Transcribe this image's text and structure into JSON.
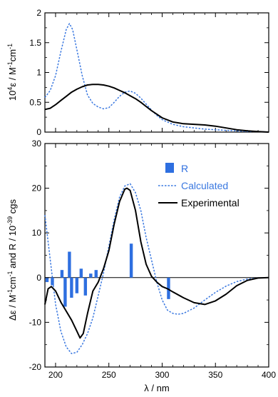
{
  "chart_data": [
    {
      "type": "line",
      "xlim": [
        190,
        400
      ],
      "ylim": [
        0,
        2
      ],
      "xticks": [
        200,
        250,
        300,
        350,
        400
      ],
      "yticks": [
        "0",
        "0.5",
        "1",
        "1.5",
        "2"
      ],
      "ylabel_pre": "10",
      "ylabel_sup": "4",
      "ylabel_main": "ε / M",
      "ylabel_sup2": "-1",
      "ylabel_mid": "cm",
      "ylabel_sup3": "-1",
      "grid": false,
      "series": [
        {
          "name": "Calculated",
          "color": "#3a78e0",
          "dash": true,
          "x": [
            190,
            195,
            200,
            205,
            210,
            213,
            216,
            220,
            225,
            230,
            235,
            240,
            245,
            250,
            255,
            260,
            265,
            270,
            275,
            280,
            285,
            290,
            295,
            300,
            310,
            320,
            330,
            340,
            350,
            360,
            370,
            380,
            390,
            400
          ],
          "y": [
            0.58,
            0.7,
            0.95,
            1.35,
            1.72,
            1.82,
            1.72,
            1.38,
            0.95,
            0.62,
            0.48,
            0.42,
            0.39,
            0.41,
            0.5,
            0.6,
            0.67,
            0.69,
            0.65,
            0.57,
            0.47,
            0.37,
            0.28,
            0.21,
            0.13,
            0.09,
            0.07,
            0.05,
            0.04,
            0.03,
            0.02,
            0.01,
            0.01,
            0.0
          ]
        },
        {
          "name": "Experimental",
          "color": "#000000",
          "dash": false,
          "x": [
            190,
            195,
            200,
            205,
            210,
            215,
            220,
            225,
            230,
            235,
            240,
            245,
            250,
            255,
            260,
            265,
            270,
            275,
            280,
            285,
            290,
            295,
            300,
            310,
            320,
            330,
            340,
            350,
            360,
            370,
            380,
            390,
            400
          ],
          "y": [
            0.38,
            0.4,
            0.46,
            0.53,
            0.6,
            0.67,
            0.72,
            0.76,
            0.79,
            0.8,
            0.8,
            0.79,
            0.77,
            0.74,
            0.7,
            0.66,
            0.61,
            0.56,
            0.5,
            0.43,
            0.36,
            0.3,
            0.24,
            0.17,
            0.14,
            0.13,
            0.12,
            0.1,
            0.07,
            0.04,
            0.02,
            0.01,
            0.0
          ]
        }
      ]
    },
    {
      "type": "line",
      "xlim": [
        190,
        400
      ],
      "ylim": [
        -20,
        30
      ],
      "xticks": [
        200,
        250,
        300,
        350,
        400
      ],
      "yticks": [
        "-20",
        "-10",
        "0",
        "10",
        "20",
        "30"
      ],
      "xlabel": "λ / nm",
      "ylabel_a": "Δε / M",
      "ylabel_a_sup": "-1",
      "ylabel_b": "cm",
      "ylabel_b_sup": "-1",
      "ylabel_c": " and R / 10",
      "ylabel_c_sup": "-39",
      "ylabel_d": " cgs",
      "grid": false,
      "legend": {
        "placement": "top-right",
        "items": [
          {
            "label": "R",
            "color": "#2e6fe0",
            "kind": "bar"
          },
          {
            "label": "Calculated",
            "color": "#3a78e0",
            "kind": "dash"
          },
          {
            "label": "Experimental",
            "color": "#000000",
            "kind": "line"
          }
        ]
      },
      "bars_R": {
        "name": "R",
        "color": "#2e6fe0",
        "x": [
          192,
          197,
          206,
          209,
          213,
          215,
          220,
          224,
          228,
          233,
          238,
          271,
          306
        ],
        "y": [
          -1.0,
          -1.7,
          1.7,
          -6.5,
          5.8,
          -4.5,
          -3.5,
          2.0,
          -4.0,
          0.9,
          1.7,
          7.6,
          -4.8
        ]
      },
      "series": [
        {
          "name": "Calculated",
          "color": "#3a78e0",
          "dash": true,
          "x": [
            190,
            195,
            200,
            205,
            210,
            215,
            220,
            225,
            230,
            235,
            240,
            245,
            250,
            255,
            260,
            265,
            270,
            275,
            280,
            285,
            290,
            295,
            300,
            305,
            310,
            315,
            320,
            330,
            340,
            350,
            360,
            370,
            380,
            390,
            400
          ],
          "y": [
            14,
            4,
            -6,
            -12,
            -15.5,
            -17,
            -16.7,
            -15,
            -12.5,
            -9,
            -4,
            1,
            7,
            13,
            18,
            20.5,
            21,
            19,
            15,
            9,
            4,
            -1,
            -5,
            -7.3,
            -8,
            -8.2,
            -8,
            -6.8,
            -5,
            -3.3,
            -1.9,
            -0.9,
            -0.3,
            -0.1,
            0
          ]
        },
        {
          "name": "Experimental",
          "color": "#000000",
          "dash": false,
          "x": [
            190,
            193,
            196,
            200,
            205,
            210,
            215,
            220,
            223,
            226,
            230,
            235,
            240,
            245,
            250,
            255,
            260,
            265,
            267,
            270,
            275,
            280,
            285,
            290,
            295,
            300,
            305,
            310,
            320,
            330,
            340,
            350,
            360,
            370,
            380,
            390,
            400
          ],
          "y": [
            -6,
            -2.5,
            -2,
            -3,
            -5.5,
            -7.5,
            -9.5,
            -12,
            -13.5,
            -12.5,
            -8,
            -3,
            -1,
            2,
            6,
            12,
            17,
            19.8,
            20,
            19.5,
            15,
            8,
            3,
            0.3,
            -1,
            -2,
            -2.5,
            -3.2,
            -4.5,
            -5.6,
            -6,
            -5.2,
            -3.7,
            -1.8,
            -0.6,
            -0.1,
            0
          ]
        }
      ]
    }
  ]
}
